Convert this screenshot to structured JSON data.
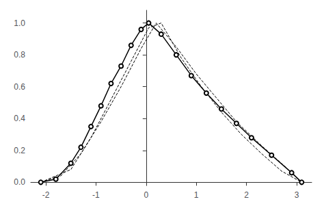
{
  "chart_data": {
    "type": "line",
    "xlim": [
      -2.3,
      3.3
    ],
    "ylim": [
      -0.02,
      1.08
    ],
    "xticks": [
      -2,
      -1,
      0,
      1,
      2,
      3
    ],
    "yticks": [
      {
        "value": 0,
        "label": "0.0"
      },
      0.2,
      0.4,
      0.6,
      0.8,
      {
        "value": 1,
        "label": "1.0"
      }
    ],
    "grid": false,
    "series": [
      {
        "x": [
          -2.1,
          -1.7,
          -1.3,
          -0.9,
          -0.5,
          -0.1,
          0.2,
          0.6,
          1.0,
          1.4,
          1.8,
          2.3,
          2.8,
          3.1
        ],
        "values": [
          0.0,
          0.04,
          0.18,
          0.38,
          0.6,
          0.84,
          1.0,
          0.85,
          0.68,
          0.53,
          0.38,
          0.23,
          0.09,
          0.0
        ],
        "color": "#000000",
        "line_style": "dashed",
        "marker": "none"
      },
      {
        "x": [
          -2.1,
          -1.5,
          -1.1,
          -0.7,
          -0.3,
          0.05,
          0.3,
          0.7,
          1.1,
          1.5,
          1.9,
          2.3,
          2.7,
          3.1
        ],
        "values": [
          0.0,
          0.08,
          0.28,
          0.52,
          0.76,
          0.97,
          1.0,
          0.78,
          0.6,
          0.44,
          0.3,
          0.18,
          0.07,
          0.0
        ],
        "color": "#000000",
        "line_style": "dashed",
        "marker": "none"
      },
      {
        "x": [
          -2.1,
          -1.8,
          -1.5,
          -1.3,
          -1.1,
          -0.9,
          -0.7,
          -0.5,
          -0.3,
          -0.1,
          0.05,
          0.3,
          0.6,
          0.9,
          1.2,
          1.5,
          1.8,
          2.1,
          2.5,
          2.9,
          3.1
        ],
        "values": [
          0.0,
          0.02,
          0.12,
          0.22,
          0.35,
          0.48,
          0.62,
          0.73,
          0.86,
          0.96,
          1.0,
          0.93,
          0.8,
          0.67,
          0.56,
          0.46,
          0.37,
          0.28,
          0.17,
          0.06,
          0.0
        ],
        "color": "#000000",
        "line_style": "solid",
        "marker": "circle"
      }
    ]
  }
}
